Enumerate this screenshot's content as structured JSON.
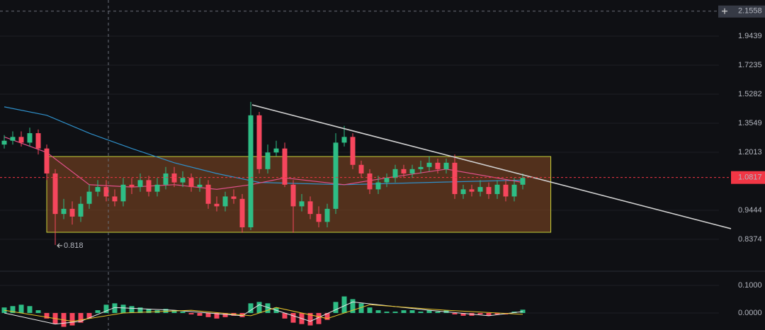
{
  "chart_data": [
    {
      "type": "candlestick",
      "log_scale": true,
      "xlim": [
        -0.5,
        89.5
      ],
      "ylim": [
        0.74,
        2.258
      ],
      "yticks": [
        0.8374,
        0.9444,
        1.2013,
        1.3549,
        1.5282,
        1.7235,
        1.9439
      ],
      "up_color": "#2ebd85",
      "down_color": "#f6465d",
      "open": [
        1.24,
        1.26,
        1.28,
        1.25,
        1.3,
        1.22,
        1.1,
        0.93,
        0.95,
        0.92,
        0.97,
        1.02,
        1.04,
        1.0,
        0.98,
        1.05,
        1.04,
        1.07,
        1.02,
        1.05,
        1.1,
        1.06,
        1.08,
        1.04,
        1.05,
        0.97,
        0.96,
        1.0,
        0.99,
        0.88,
        1.4,
        1.12,
        1.2,
        1.22,
        1.05,
        0.96,
        0.98,
        0.93,
        0.9,
        0.95,
        1.25,
        1.28,
        1.14,
        1.1,
        1.03,
        1.06,
        1.08,
        1.12,
        1.1,
        1.12,
        1.13,
        1.15,
        1.12,
        1.15,
        1.01,
        1.03,
        1.02,
        1.04,
        1.01,
        1.05,
        1.0,
        1.05
      ],
      "high": [
        1.29,
        1.31,
        1.31,
        1.33,
        1.32,
        1.24,
        1.12,
        0.99,
        0.98,
        1.0,
        1.05,
        1.07,
        1.07,
        1.03,
        1.08,
        1.08,
        1.1,
        1.09,
        1.08,
        1.13,
        1.13,
        1.11,
        1.1,
        1.08,
        1.07,
        1.0,
        1.02,
        1.03,
        1.01,
        1.48,
        1.42,
        1.24,
        1.26,
        1.25,
        1.07,
        1.01,
        1.0,
        0.96,
        0.97,
        1.3,
        1.34,
        1.3,
        1.16,
        1.12,
        1.09,
        1.1,
        1.14,
        1.14,
        1.14,
        1.16,
        1.18,
        1.17,
        1.17,
        1.19,
        1.05,
        1.05,
        1.07,
        1.06,
        1.07,
        1.07,
        1.08,
        1.1
      ],
      "low": [
        1.22,
        1.24,
        1.23,
        1.23,
        1.19,
        1.07,
        0.818,
        0.91,
        0.89,
        0.9,
        0.95,
        1.0,
        0.98,
        0.96,
        0.96,
        1.01,
        1.02,
        1.0,
        1.0,
        1.03,
        1.04,
        1.04,
        1.02,
        1.02,
        0.95,
        0.94,
        0.94,
        0.97,
        0.86,
        0.87,
        1.1,
        1.1,
        1.18,
        1.04,
        0.86,
        0.94,
        0.91,
        0.88,
        0.88,
        0.93,
        1.23,
        1.12,
        1.08,
        1.01,
        1.01,
        1.04,
        1.06,
        1.08,
        1.08,
        1.1,
        1.11,
        1.1,
        1.1,
        0.99,
        0.99,
        1.0,
        1.0,
        0.99,
        0.99,
        0.98,
        0.98,
        1.03
      ],
      "close": [
        1.26,
        1.28,
        1.25,
        1.3,
        1.22,
        1.1,
        0.93,
        0.95,
        0.92,
        0.97,
        1.02,
        1.04,
        1.0,
        0.98,
        1.05,
        1.04,
        1.07,
        1.02,
        1.05,
        1.1,
        1.06,
        1.08,
        1.04,
        1.05,
        0.97,
        0.96,
        1.0,
        0.99,
        0.88,
        1.4,
        1.12,
        1.2,
        1.22,
        1.05,
        0.96,
        0.98,
        0.93,
        0.9,
        0.95,
        1.25,
        1.28,
        1.14,
        1.1,
        1.03,
        1.06,
        1.08,
        1.12,
        1.1,
        1.12,
        1.13,
        1.15,
        1.12,
        1.15,
        1.01,
        1.03,
        1.02,
        1.04,
        1.01,
        1.05,
        1.0,
        1.05,
        1.08
      ],
      "overlays": [
        {
          "color": "#2f8fc9",
          "x": [
            0,
            5,
            10,
            15,
            20,
            25,
            30,
            40,
            50,
            61
          ],
          "values": [
            1.45,
            1.4,
            1.3,
            1.22,
            1.15,
            1.1,
            1.06,
            1.05,
            1.06,
            1.07
          ]
        },
        {
          "color": "#e0508a",
          "x": [
            0,
            5,
            10,
            15,
            20,
            25,
            29,
            33,
            40,
            45,
            52,
            61
          ],
          "values": [
            1.28,
            1.2,
            1.05,
            1.04,
            1.05,
            1.03,
            1.05,
            1.08,
            1.05,
            1.08,
            1.12,
            1.06
          ]
        }
      ],
      "range_box": {
        "x": [
          5,
          64.3
        ],
        "y": [
          0.862,
          1.18
        ],
        "fill": "#8a4a22",
        "stroke": "#c8d23a"
      },
      "trendline": {
        "x": [
          29.17,
          85.5
        ],
        "y": [
          1.462,
          0.875
        ],
        "color": "#d0d0d0"
      },
      "annotations": [
        {
          "x": 6,
          "y": 0.818
        }
      ],
      "last_price": 1.0817,
      "last_color": "#f23645",
      "crosshair": {
        "x": 12.25,
        "y": 2.1558
      }
    },
    {
      "type": "bar",
      "xlim": [
        -0.5,
        89.5
      ],
      "ylim": [
        -0.0615,
        0.146
      ],
      "yticks": [
        {
          "value": 0,
          "label": "0.0000"
        },
        {
          "value": 0.1,
          "label": "0.1000"
        }
      ],
      "up_color": "#2ebd85",
      "down_color": "#f6465d",
      "values": [
        0.02,
        0.025,
        0.03,
        0.025,
        0.01,
        -0.02,
        -0.04,
        -0.05,
        -0.045,
        -0.035,
        -0.02,
        0.01,
        0.03,
        0.035,
        0.03,
        0.025,
        0.02,
        0.015,
        0.01,
        0.015,
        0.01,
        0.005,
        -0.005,
        -0.01,
        -0.015,
        -0.02,
        -0.015,
        -0.01,
        -0.015,
        0.035,
        0.04,
        0.035,
        0.02,
        -0.02,
        -0.035,
        -0.04,
        -0.045,
        -0.04,
        -0.025,
        0.04,
        0.06,
        0.05,
        0.035,
        0.02,
        0.01,
        0.005,
        0.005,
        0.01,
        0.01,
        0.005,
        0.01,
        0.005,
        0.01,
        -0.005,
        -0.01,
        -0.01,
        -0.005,
        -0.01,
        -0.005,
        -0.005,
        0.005,
        0.012
      ],
      "lines": [
        {
          "color": "#e8e8e8",
          "x": [
            0,
            6,
            9,
            13,
            20,
            28,
            30,
            36,
            41,
            50,
            57,
            61
          ],
          "values": [
            0.0,
            -0.04,
            -0.03,
            0.02,
            0.01,
            -0.01,
            0.03,
            -0.03,
            0.04,
            0.01,
            -0.01,
            0.005
          ]
        },
        {
          "color": "#e6c229",
          "x": [
            0,
            8,
            14,
            22,
            29,
            32,
            38,
            43,
            52,
            61
          ],
          "values": [
            0.01,
            -0.03,
            0.0,
            0.01,
            -0.01,
            0.02,
            -0.02,
            0.03,
            0.01,
            -0.005
          ]
        }
      ]
    }
  ]
}
